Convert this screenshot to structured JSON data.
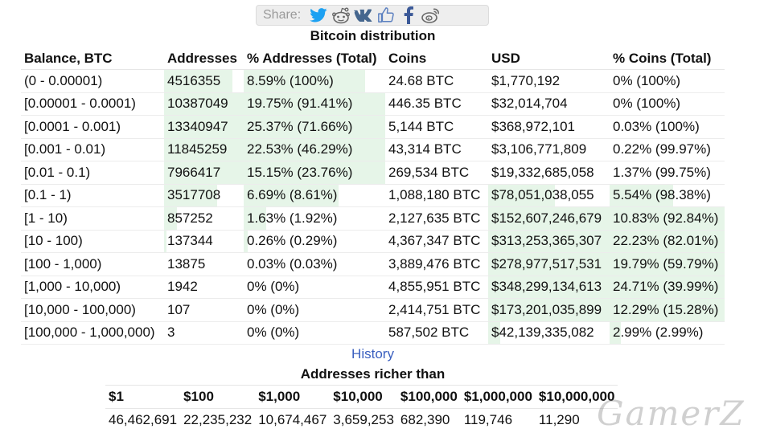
{
  "share": {
    "label": "Share:",
    "buttons": [
      "twitter",
      "reddit",
      "vk",
      "like",
      "facebook",
      "weibo"
    ]
  },
  "distribution": {
    "title": "Bitcoin distribution",
    "headers": [
      "Balance, BTC",
      "Addresses",
      "% Addresses (Total)",
      "Coins",
      "USD",
      "% Coins (Total)"
    ],
    "rows": [
      {
        "balance": "(0 - 0.00001)",
        "addresses": "4516355",
        "pct_addr": "8.59% (100%)",
        "coins": "24.68 BTC",
        "usd": "$1,770,192",
        "pct_coins": "0% (100%)",
        "addr_fill": 0.86,
        "coins_fill": 0.0
      },
      {
        "balance": "[0.00001 - 0.0001)",
        "addresses": "10387049",
        "pct_addr": "19.75% (91.41%)",
        "coins": "446.35 BTC",
        "usd": "$32,014,704",
        "pct_coins": "0% (100%)",
        "addr_fill": 1.0,
        "coins_fill": 0.0
      },
      {
        "balance": "[0.0001 - 0.001)",
        "addresses": "13340947",
        "pct_addr": "25.37% (71.66%)",
        "coins": "5,144 BTC",
        "usd": "$368,972,101",
        "pct_coins": "0.03% (100%)",
        "addr_fill": 1.0,
        "coins_fill": 0.0
      },
      {
        "balance": "[0.001 - 0.01)",
        "addresses": "11845259",
        "pct_addr": "22.53% (46.29%)",
        "coins": "43,314 BTC",
        "usd": "$3,106,771,809",
        "pct_coins": "0.22% (99.97%)",
        "addr_fill": 1.0,
        "coins_fill": 0.0
      },
      {
        "balance": "[0.01 - 0.1)",
        "addresses": "7966417",
        "pct_addr": "15.15% (23.76%)",
        "coins": "269,534 BTC",
        "usd": "$19,332,685,058",
        "pct_coins": "1.37% (99.75%)",
        "addr_fill": 1.0,
        "coins_fill": 0.0
      },
      {
        "balance": "[0.1 - 1)",
        "addresses": "3517708",
        "pct_addr": "6.69% (8.61%)",
        "coins": "1,088,180 BTC",
        "usd": "$78,051,038,055",
        "pct_coins": "5.54% (98.38%)",
        "addr_fill": 0.67,
        "coins_fill": 0.55
      },
      {
        "balance": "[1 - 10)",
        "addresses": "857252",
        "pct_addr": "1.63% (1.92%)",
        "coins": "2,127,635 BTC",
        "usd": "$152,607,246,679",
        "pct_coins": "10.83% (92.84%)",
        "addr_fill": 0.16,
        "coins_fill": 1.0
      },
      {
        "balance": "[10 - 100)",
        "addresses": "137344",
        "pct_addr": "0.26% (0.29%)",
        "coins": "4,367,347 BTC",
        "usd": "$313,253,365,307",
        "pct_coins": "22.23% (82.01%)",
        "addr_fill": 0.03,
        "coins_fill": 1.0
      },
      {
        "balance": "[100 - 1,000)",
        "addresses": "13875",
        "pct_addr": "0.03% (0.03%)",
        "coins": "3,889,476 BTC",
        "usd": "$278,977,517,531",
        "pct_coins": "19.79% (59.79%)",
        "addr_fill": 0.0,
        "coins_fill": 1.0
      },
      {
        "balance": "[1,000 - 10,000)",
        "addresses": "1942",
        "pct_addr": "0% (0%)",
        "coins": "4,855,951 BTC",
        "usd": "$348,299,134,613",
        "pct_coins": "24.71% (39.99%)",
        "addr_fill": 0.0,
        "coins_fill": 1.0
      },
      {
        "balance": "[10,000 - 100,000)",
        "addresses": "107",
        "pct_addr": "0% (0%)",
        "coins": "2,414,751 BTC",
        "usd": "$173,201,035,899",
        "pct_coins": "12.29% (15.28%)",
        "addr_fill": 0.0,
        "coins_fill": 1.0
      },
      {
        "balance": "[100,000 - 1,000,000)",
        "addresses": "3",
        "pct_addr": "0% (0%)",
        "coins": "587,502 BTC",
        "usd": "$42,139,335,082",
        "pct_coins": "2.99% (2.99%)",
        "addr_fill": 0.0,
        "coins_fill": 0.1
      }
    ]
  },
  "history_link": "History",
  "richer": {
    "title": "Addresses richer than",
    "headers": [
      "$1",
      "$100",
      "$1,000",
      "$10,000",
      "$100,000",
      "$1,000,000",
      "$10,000,000"
    ],
    "values": [
      "46,462,691",
      "22,235,232",
      "10,674,467",
      "3,659,253",
      "682,390",
      "119,746",
      "11,290"
    ]
  },
  "watermark": "GamerZ",
  "colors": {
    "bar_fill": "#e6f5e8",
    "link": "#3a5fbf",
    "share_bg": "#eeeeee"
  }
}
